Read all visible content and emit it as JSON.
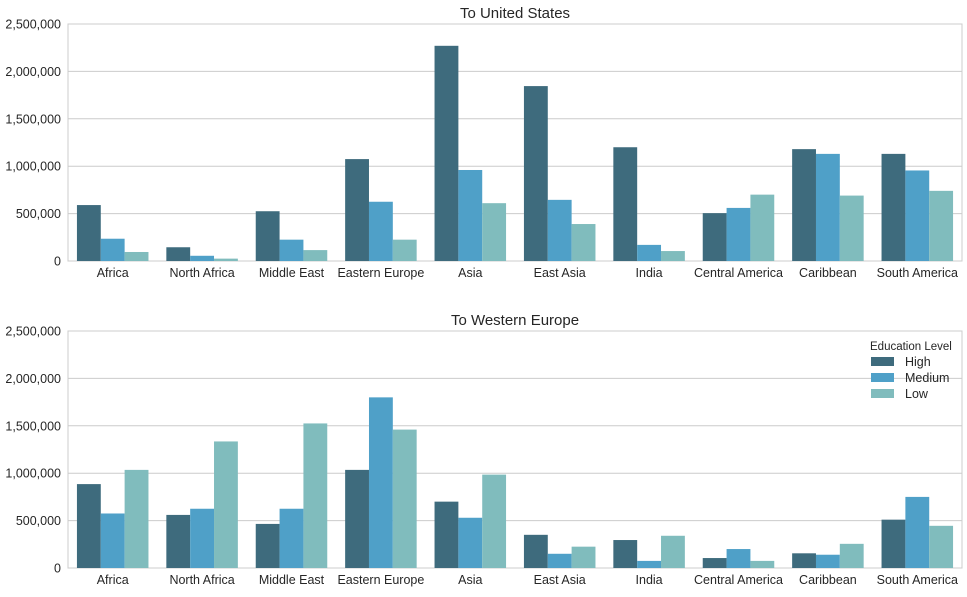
{
  "chart_data": [
    {
      "type": "bar",
      "title": "To United States",
      "xlabel": "",
      "ylabel": "",
      "categories": [
        "Africa",
        "North Africa",
        "Middle East",
        "Eastern Europe",
        "Asia",
        "East Asia",
        "India",
        "Central America",
        "Caribbean",
        "South America"
      ],
      "ylim": [
        0,
        2500000
      ],
      "yticks": [
        0,
        500000,
        1000000,
        1500000,
        2000000,
        2500000
      ],
      "ytick_labels": [
        "0",
        "500,000",
        "1,000,000",
        "1,500,000",
        "2,000,000",
        "2,500,000"
      ],
      "grid": true,
      "series": [
        {
          "name": "High",
          "color": "#3e6b7d",
          "values": [
            590000,
            145000,
            525000,
            1075000,
            2270000,
            1845000,
            1200000,
            505000,
            1180000,
            1130000
          ]
        },
        {
          "name": "Medium",
          "color": "#4fa0c8",
          "values": [
            235000,
            55000,
            225000,
            625000,
            960000,
            645000,
            170000,
            560000,
            1130000,
            955000
          ]
        },
        {
          "name": "Low",
          "color": "#80bcbd",
          "values": [
            95000,
            25000,
            115000,
            225000,
            610000,
            390000,
            105000,
            700000,
            690000,
            740000
          ]
        }
      ],
      "legend": null
    },
    {
      "type": "bar",
      "title": "To Western Europe",
      "xlabel": "",
      "ylabel": "",
      "categories": [
        "Africa",
        "North Africa",
        "Middle East",
        "Eastern Europe",
        "Asia",
        "East Asia",
        "India",
        "Central America",
        "Caribbean",
        "South America"
      ],
      "ylim": [
        0,
        2500000
      ],
      "yticks": [
        0,
        500000,
        1000000,
        1500000,
        2000000,
        2500000
      ],
      "ytick_labels": [
        "0",
        "500,000",
        "1,000,000",
        "1,500,000",
        "2,000,000",
        "2,500,000"
      ],
      "grid": true,
      "series": [
        {
          "name": "High",
          "color": "#3e6b7d",
          "values": [
            885000,
            560000,
            465000,
            1035000,
            700000,
            350000,
            295000,
            105000,
            155000,
            510000
          ]
        },
        {
          "name": "Medium",
          "color": "#4fa0c8",
          "values": [
            575000,
            625000,
            625000,
            1800000,
            530000,
            150000,
            75000,
            200000,
            140000,
            750000
          ]
        },
        {
          "name": "Low",
          "color": "#80bcbd",
          "values": [
            1035000,
            1335000,
            1525000,
            1460000,
            985000,
            225000,
            340000,
            75000,
            255000,
            445000
          ]
        }
      ],
      "legend": {
        "title": "Education Level",
        "placement": "top-right",
        "entries": [
          "High",
          "Medium",
          "Low"
        ]
      }
    }
  ]
}
